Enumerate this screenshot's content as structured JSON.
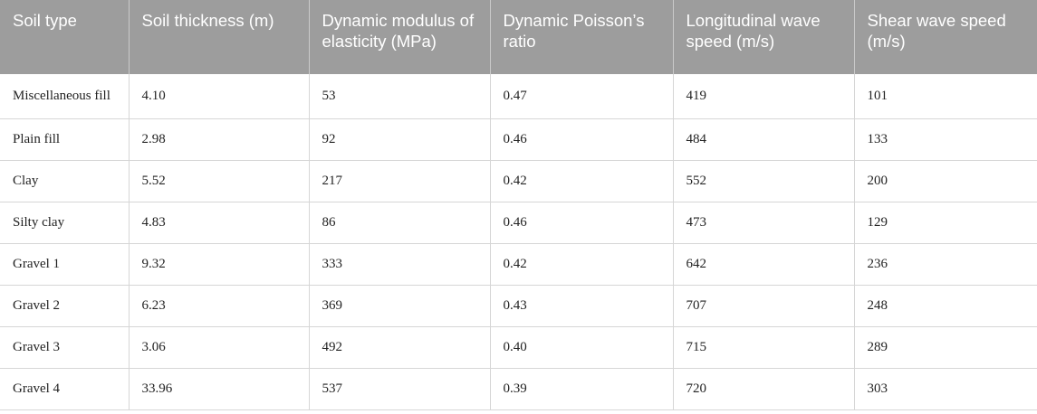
{
  "table": {
    "headers": [
      "Soil type",
      "Soil thickness (m)",
      "Dynamic modulus of elasticity (MPa)",
      "Dynamic Poisson’s ratio",
      "Longitudinal wave speed (m/s)",
      "Shear wave speed (m/s)"
    ],
    "rows": [
      [
        "Miscellaneous fill",
        "4.10",
        "53",
        "0.47",
        "419",
        "101"
      ],
      [
        "Plain fill",
        "2.98",
        "92",
        "0.46",
        "484",
        "133"
      ],
      [
        "Clay",
        "5.52",
        "217",
        "0.42",
        "552",
        "200"
      ],
      [
        "Silty clay",
        "4.83",
        "86",
        "0.46",
        "473",
        "129"
      ],
      [
        "Gravel 1",
        "9.32",
        "333",
        "0.42",
        "642",
        "236"
      ],
      [
        "Gravel 2",
        "6.23",
        "369",
        "0.43",
        "707",
        "248"
      ],
      [
        "Gravel 3",
        "3.06",
        "492",
        "0.40",
        "715",
        "289"
      ],
      [
        "Gravel 4",
        "33.96",
        "537",
        "0.39",
        "720",
        "303"
      ]
    ]
  }
}
